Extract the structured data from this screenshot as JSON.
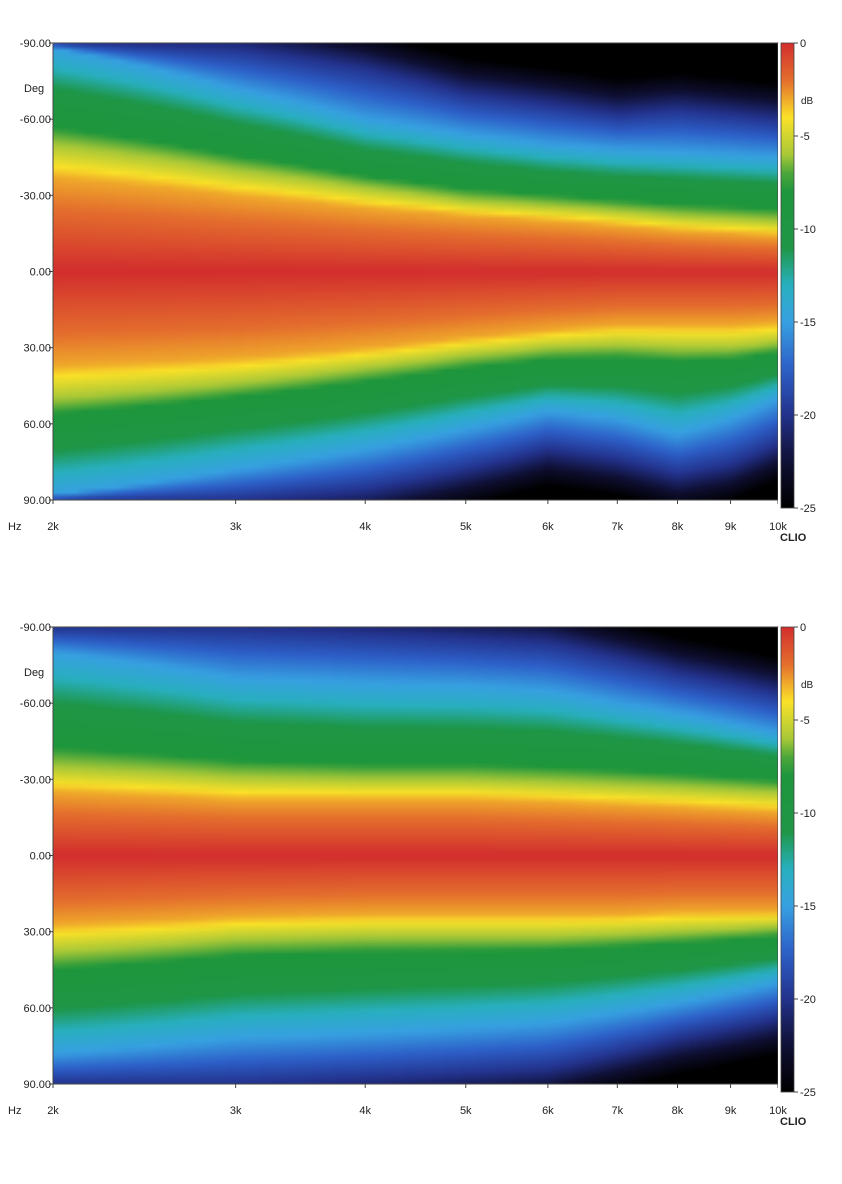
{
  "chart_data": [
    {
      "type": "heatmap",
      "title": "",
      "xlabel": "Hz",
      "ylabel": "Deg",
      "colorbar_unit": "dB",
      "brand": "CLIO",
      "x_scale": "log",
      "xlim": [
        2000,
        10000
      ],
      "x_ticks": [
        2000,
        3000,
        4000,
        5000,
        6000,
        7000,
        8000,
        9000,
        10000
      ],
      "x_tick_labels": [
        "2k",
        "3k",
        "4k",
        "5k",
        "6k",
        "7k",
        "8k",
        "9k",
        "10k"
      ],
      "ylim": [
        -90,
        90
      ],
      "y_ticks": [
        -90,
        -60,
        -30,
        0,
        30,
        60,
        90
      ],
      "y_tick_labels": [
        "-90.00",
        "-60.00",
        "-30.00",
        "0.00",
        "30.00",
        "60.00",
        "90.00"
      ],
      "zlim": [
        -25,
        0
      ],
      "colorbar_ticks": [
        0,
        -5,
        -10,
        -15,
        -20,
        -25
      ],
      "colorbar_tick_labels": [
        "0",
        "-5",
        "-10",
        "-15",
        "-20",
        "-25"
      ],
      "iso_contours": [
        {
          "level_db": -3,
          "freq": [
            2000,
            3000,
            4000,
            5000,
            6000,
            7000,
            8000,
            9000,
            10000
          ],
          "upper_deg": [
            -37,
            -30,
            -25,
            -22,
            -20,
            -18,
            -16,
            -15,
            -14
          ],
          "lower_deg": [
            37,
            34,
            30,
            26,
            23,
            21,
            21,
            21,
            20
          ]
        },
        {
          "level_db": -6,
          "freq": [
            2000,
            3000,
            4000,
            5000,
            6000,
            7000,
            8000,
            9000,
            10000
          ],
          "upper_deg": [
            -50,
            -40,
            -33,
            -28,
            -26,
            -24,
            -22,
            -21,
            -20
          ],
          "lower_deg": [
            50,
            44,
            38,
            33,
            30,
            29,
            30,
            30,
            28
          ]
        },
        {
          "level_db": -10,
          "freq": [
            2000,
            3000,
            4000,
            5000,
            6000,
            7000,
            8000,
            9000,
            10000
          ],
          "upper_deg": [
            -68,
            -55,
            -45,
            -40,
            -37,
            -35,
            -34,
            -33,
            -32
          ],
          "lower_deg": [
            66,
            58,
            52,
            46,
            42,
            42,
            44,
            42,
            38
          ]
        },
        {
          "level_db": -15,
          "freq": [
            2000,
            3000,
            4000,
            5000,
            6000,
            7000,
            8000,
            9000,
            10000
          ],
          "upper_deg": [
            -88,
            -72,
            -60,
            -54,
            -50,
            -48,
            -47,
            -46,
            -45
          ],
          "lower_deg": [
            88,
            78,
            70,
            62,
            55,
            58,
            64,
            58,
            50
          ]
        },
        {
          "level_db": -20,
          "freq": [
            2000,
            3000,
            4000,
            5000,
            6000,
            7000,
            8000,
            9000,
            10000
          ],
          "upper_deg": [
            -90,
            -88,
            -80,
            -70,
            -66,
            -62,
            -64,
            -62,
            -60
          ],
          "lower_deg": [
            90,
            90,
            86,
            78,
            70,
            74,
            80,
            76,
            68
          ]
        }
      ]
    },
    {
      "type": "heatmap",
      "title": "",
      "xlabel": "Hz",
      "ylabel": "Deg",
      "colorbar_unit": "dB",
      "brand": "CLIO",
      "x_scale": "log",
      "xlim": [
        2000,
        10000
      ],
      "x_ticks": [
        2000,
        3000,
        4000,
        5000,
        6000,
        7000,
        8000,
        9000,
        10000
      ],
      "x_tick_labels": [
        "2k",
        "3k",
        "4k",
        "5k",
        "6k",
        "7k",
        "8k",
        "9k",
        "10k"
      ],
      "ylim": [
        -90,
        90
      ],
      "y_ticks": [
        -90,
        -60,
        -30,
        0,
        30,
        60,
        90
      ],
      "y_tick_labels": [
        "-90.00",
        "-60.00",
        "-30.00",
        "0.00",
        "30.00",
        "60.00",
        "90.00"
      ],
      "zlim": [
        -25,
        0
      ],
      "colorbar_ticks": [
        0,
        -5,
        -10,
        -15,
        -20,
        -25
      ],
      "colorbar_tick_labels": [
        "0",
        "-5",
        "-10",
        "-15",
        "-20",
        "-25"
      ],
      "iso_contours": [
        {
          "level_db": -3,
          "freq": [
            2000,
            3000,
            4000,
            5000,
            6000,
            7000,
            8000,
            9000,
            10000
          ],
          "upper_deg": [
            -25,
            -22,
            -22,
            -22,
            -21,
            -20,
            -19,
            -18,
            -17
          ],
          "lower_deg": [
            27,
            24,
            23,
            23,
            23,
            23,
            22,
            22,
            22
          ]
        },
        {
          "level_db": -6,
          "freq": [
            2000,
            3000,
            4000,
            5000,
            6000,
            7000,
            8000,
            9000,
            10000
          ],
          "upper_deg": [
            -35,
            -31,
            -30,
            -30,
            -29,
            -28,
            -27,
            -26,
            -25
          ],
          "lower_deg": [
            38,
            33,
            32,
            32,
            32,
            31,
            30,
            29,
            28
          ]
        },
        {
          "level_db": -10,
          "freq": [
            2000,
            3000,
            4000,
            5000,
            6000,
            7000,
            8000,
            9000,
            10000
          ],
          "upper_deg": [
            -55,
            -48,
            -46,
            -46,
            -45,
            -43,
            -41,
            -39,
            -37
          ],
          "lower_deg": [
            56,
            50,
            48,
            47,
            46,
            44,
            42,
            40,
            38
          ]
        },
        {
          "level_db": -15,
          "freq": [
            2000,
            3000,
            4000,
            5000,
            6000,
            7000,
            8000,
            9000,
            10000
          ],
          "upper_deg": [
            -80,
            -70,
            -68,
            -67,
            -65,
            -60,
            -56,
            -52,
            -48
          ],
          "lower_deg": [
            78,
            72,
            70,
            68,
            66,
            62,
            58,
            54,
            50
          ]
        },
        {
          "level_db": -20,
          "freq": [
            2000,
            3000,
            4000,
            5000,
            6000,
            7000,
            8000,
            9000,
            10000
          ],
          "upper_deg": [
            -90,
            -90,
            -88,
            -86,
            -84,
            -78,
            -72,
            -68,
            -64
          ],
          "lower_deg": [
            90,
            90,
            88,
            86,
            84,
            78,
            72,
            68,
            64
          ]
        }
      ]
    }
  ]
}
